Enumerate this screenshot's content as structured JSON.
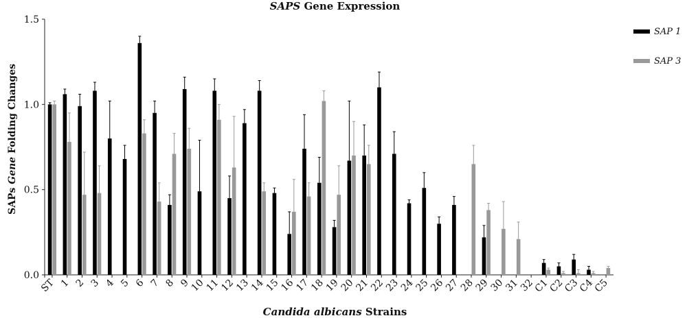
{
  "chart_data": {
    "type": "bar",
    "title_pre": "SAPS",
    "title_post": " Gene Expression",
    "ylabel_pre": "SAPs ",
    "ylabel_mid": "Gene",
    "ylabel_post": " Folding Changes",
    "xlabel": "Candida albicans",
    "xlabel_post": " Strains",
    "ylim": [
      0,
      1.5
    ],
    "yticks": [
      "0.0",
      "0.5",
      "1.0",
      "1.5"
    ],
    "legend_position": "top-right",
    "categories": [
      "ST",
      "1",
      "2",
      "3",
      "4",
      "5",
      "6",
      "7",
      "8",
      "9",
      "10",
      "11",
      "12",
      "13",
      "14",
      "15",
      "16",
      "17",
      "18",
      "19",
      "20",
      "21",
      "22",
      "23",
      "24",
      "25",
      "26",
      "27",
      "28",
      "29",
      "30",
      "31",
      "32",
      "C1",
      "C2",
      "C3",
      "C4",
      "C5"
    ],
    "series": [
      {
        "name": "SAP 1",
        "color": "#000000",
        "values": [
          1.0,
          1.06,
          0.99,
          1.08,
          0.8,
          0.68,
          1.36,
          0.95,
          0.41,
          1.09,
          0.49,
          1.08,
          0.45,
          0.89,
          1.08,
          0.48,
          0.24,
          0.74,
          0.54,
          0.28,
          0.67,
          0.7,
          1.1,
          0.71,
          0.42,
          0.51,
          0.3,
          0.41,
          0.0,
          0.22,
          0.0,
          0.0,
          0.0,
          0.07,
          0.05,
          0.09,
          0.03,
          0.0
        ],
        "errors": [
          0.01,
          0.03,
          0.07,
          0.05,
          0.22,
          0.08,
          0.04,
          0.07,
          0.06,
          0.07,
          0.3,
          0.07,
          0.13,
          0.08,
          0.06,
          0.03,
          0.13,
          0.2,
          0.15,
          0.04,
          0.35,
          0.18,
          0.09,
          0.13,
          0.02,
          0.09,
          0.04,
          0.05,
          0.0,
          0.07,
          0.0,
          0.0,
          0.0,
          0.02,
          0.02,
          0.03,
          0.02,
          0.0
        ]
      },
      {
        "name": "SAP 3",
        "color": "#999999",
        "values": [
          1.0,
          0.78,
          0.47,
          0.48,
          0.0,
          0.0,
          0.83,
          0.43,
          0.71,
          0.74,
          0.0,
          0.91,
          0.63,
          0.0,
          0.49,
          0.0,
          0.37,
          0.46,
          1.02,
          0.47,
          0.7,
          0.65,
          0.0,
          0.0,
          0.0,
          0.0,
          0.0,
          0.0,
          0.65,
          0.38,
          0.27,
          0.21,
          0.0,
          0.03,
          0.01,
          0.01,
          0.01,
          0.04
        ],
        "errors": [
          0.02,
          0.17,
          0.25,
          0.16,
          0.0,
          0.0,
          0.08,
          0.11,
          0.12,
          0.12,
          0.0,
          0.09,
          0.3,
          0.0,
          0.05,
          0.0,
          0.19,
          0.08,
          0.06,
          0.17,
          0.2,
          0.11,
          0.0,
          0.0,
          0.0,
          0.0,
          0.0,
          0.0,
          0.11,
          0.04,
          0.16,
          0.1,
          0.0,
          0.01,
          0.01,
          0.02,
          0.01,
          0.01
        ]
      }
    ]
  }
}
